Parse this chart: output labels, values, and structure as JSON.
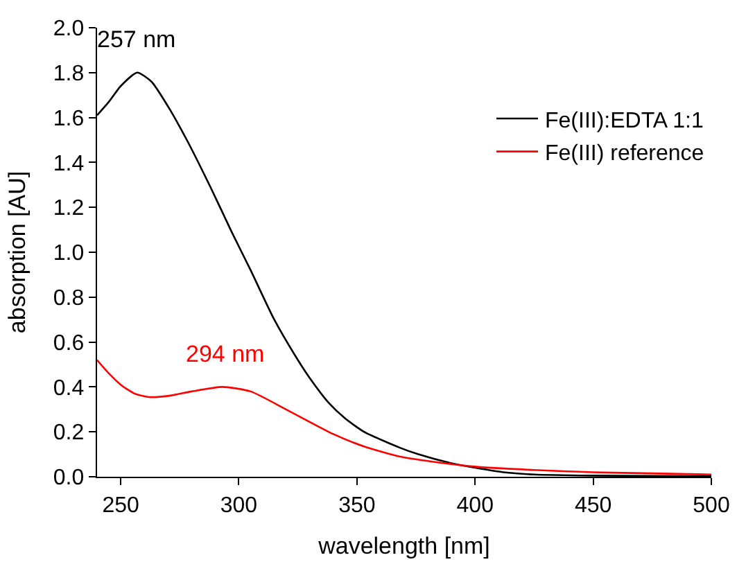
{
  "chart_data": {
    "type": "line",
    "xlabel": "wavelength [nm]",
    "ylabel": "absorption [AU]",
    "xlim": [
      240,
      500
    ],
    "xticks": [
      250,
      300,
      350,
      400,
      450,
      500
    ],
    "ylim": [
      0,
      2.0
    ],
    "yticks": [
      {
        "value": 0,
        "label": "0.0"
      },
      {
        "value": 0.2,
        "label": "0.2"
      },
      {
        "value": 0.4,
        "label": "0.4"
      },
      {
        "value": 0.6,
        "label": "0.6"
      },
      {
        "value": 0.8,
        "label": "0.8"
      },
      {
        "value": 1.0,
        "label": "1.0"
      },
      {
        "value": 1.2,
        "label": "1.2"
      },
      {
        "value": 1.4,
        "label": "1.4"
      },
      {
        "value": 1.6,
        "label": "1.6"
      },
      {
        "value": 1.8,
        "label": "1.8"
      },
      {
        "value": 2.0,
        "label": "2.0"
      }
    ],
    "series": [
      {
        "name": "Fe(III):EDTA 1:1",
        "color": "#000000",
        "x": [
          240,
          245,
          250,
          257,
          263,
          270,
          278,
          288,
          297,
          305,
          315,
          325,
          330,
          338,
          345,
          353,
          368,
          376,
          390,
          400,
          412,
          425,
          450,
          475,
          500
        ],
        "values": [
          1.61,
          1.67,
          1.74,
          1.8,
          1.76,
          1.65,
          1.5,
          1.29,
          1.09,
          0.92,
          0.7,
          0.52,
          0.44,
          0.33,
          0.26,
          0.2,
          0.13,
          0.1,
          0.06,
          0.04,
          0.02,
          0.01,
          0.005,
          0.004,
          0.003
        ]
      },
      {
        "name": "Fe(III) reference",
        "color": "#ff0000",
        "x": [
          240,
          245,
          250,
          256,
          262,
          270,
          280,
          293,
          305,
          320,
          340,
          353,
          368,
          380,
          400,
          425,
          450,
          475,
          500
        ],
        "values": [
          0.52,
          0.46,
          0.41,
          0.37,
          0.355,
          0.36,
          0.38,
          0.4,
          0.38,
          0.3,
          0.19,
          0.135,
          0.09,
          0.07,
          0.045,
          0.03,
          0.02,
          0.015,
          0.01
        ]
      }
    ],
    "annotations": [
      {
        "text": "257 nm",
        "x": 257,
        "y": 1.8
      },
      {
        "text": "294 nm",
        "x": 294,
        "y": 0.4
      }
    ],
    "legend": "top right",
    "marker": "none",
    "line_style": "solid"
  }
}
